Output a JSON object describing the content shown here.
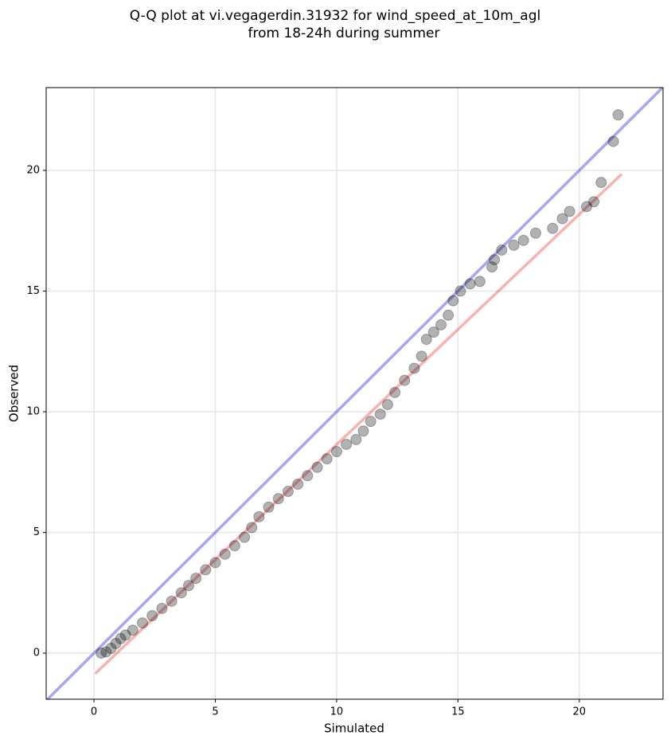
{
  "chart_data": {
    "type": "scatter",
    "title": [
      "Q-Q plot at vi.vegagerdin.31932 for wind_speed_at_10m_agl",
      "from 18-24h during summer"
    ],
    "x_label": "Simulated",
    "y_label": "Observed",
    "xlim": [
      -1.97,
      23.45
    ],
    "ylim": [
      -1.91,
      23.43
    ],
    "xticks": [
      0,
      5,
      10,
      15,
      20
    ],
    "yticks": [
      0,
      5,
      10,
      15,
      20
    ],
    "grid": true,
    "series": [
      {
        "color": "#000000",
        "opacity": 0.3,
        "x": [
          0.3,
          0.5,
          0.7,
          0.9,
          1.1,
          1.3,
          1.6,
          2.0,
          2.4,
          2.8,
          3.2,
          3.6,
          3.9,
          4.2,
          4.6,
          5.0,
          5.4,
          5.8,
          6.2,
          6.5,
          6.8,
          7.2,
          7.6,
          8.0,
          8.4,
          8.8,
          9.2,
          9.6,
          10.0,
          10.4,
          10.8,
          11.1,
          11.4,
          11.8,
          12.1,
          12.4,
          12.8,
          13.2,
          13.5,
          13.7,
          14.0,
          14.3,
          14.6,
          14.8,
          15.1,
          15.5,
          15.9,
          16.4,
          16.5,
          16.8,
          17.3,
          17.7,
          18.2,
          18.9,
          19.3,
          19.6,
          20.3,
          20.6,
          20.9,
          21.4,
          21.6
        ],
        "values": [
          0,
          0.05,
          0.2,
          0.4,
          0.6,
          0.75,
          0.95,
          1.25,
          1.55,
          1.85,
          2.15,
          2.5,
          2.8,
          3.1,
          3.45,
          3.75,
          4.1,
          4.45,
          4.8,
          5.2,
          5.65,
          6.05,
          6.4,
          6.7,
          7.0,
          7.35,
          7.7,
          8.05,
          8.35,
          8.65,
          8.85,
          9.2,
          9.6,
          9.9,
          10.3,
          10.8,
          11.3,
          11.8,
          12.3,
          13.0,
          13.3,
          13.6,
          14.0,
          14.6,
          15.0,
          15.3,
          15.4,
          16.0,
          16.3,
          16.7,
          16.9,
          17.1,
          17.4,
          17.6,
          18.0,
          18.3,
          18.5,
          18.7,
          19.5,
          21.2,
          22.3
        ]
      }
    ],
    "lines": [
      {
        "color": "#0000dd",
        "x": [
          -1.97,
          23.45
        ],
        "y": [
          -1.97,
          23.45
        ]
      },
      {
        "color": "#ee2222",
        "x": [
          0.05,
          21.75
        ],
        "y": [
          -0.85,
          19.85
        ]
      }
    ]
  }
}
